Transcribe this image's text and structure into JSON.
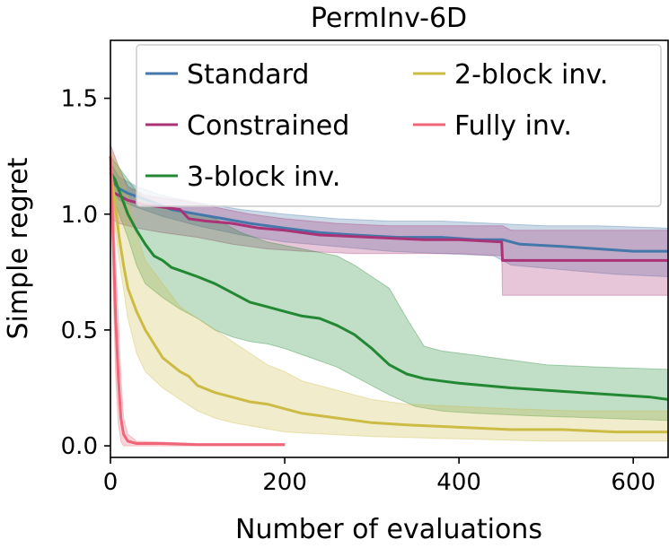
{
  "chart_data": {
    "type": "line",
    "title": "PermInv-6D",
    "xlabel": "Number of evaluations",
    "ylabel": "Simple regret",
    "xlim": [
      0,
      640
    ],
    "ylim": [
      -0.05,
      1.75
    ],
    "xticks": [
      0,
      200,
      400,
      600
    ],
    "yticks": [
      0.0,
      0.5,
      1.0,
      1.5
    ],
    "xtick_labels": [
      "0",
      "200",
      "400",
      "600"
    ],
    "ytick_labels": [
      "0.0",
      "0.5",
      "1.0",
      "1.5"
    ],
    "grid": false,
    "legend_position": "top-right",
    "series": [
      {
        "name": "Standard",
        "color": "#4477aa",
        "mean": [
          [
            0,
            1.18
          ],
          [
            5,
            1.13
          ],
          [
            10,
            1.11
          ],
          [
            20,
            1.09
          ],
          [
            35,
            1.07
          ],
          [
            50,
            1.05
          ],
          [
            70,
            1.02
          ],
          [
            100,
            1.0
          ],
          [
            130,
            0.98
          ],
          [
            160,
            0.96
          ],
          [
            200,
            0.94
          ],
          [
            240,
            0.92
          ],
          [
            280,
            0.91
          ],
          [
            330,
            0.9
          ],
          [
            380,
            0.9
          ],
          [
            420,
            0.89
          ],
          [
            450,
            0.89
          ],
          [
            470,
            0.87
          ],
          [
            520,
            0.86
          ],
          [
            560,
            0.85
          ],
          [
            600,
            0.84
          ],
          [
            640,
            0.84
          ]
        ],
        "upper": [
          [
            0,
            1.22
          ],
          [
            10,
            1.16
          ],
          [
            30,
            1.12
          ],
          [
            60,
            1.08
          ],
          [
            100,
            1.05
          ],
          [
            150,
            1.02
          ],
          [
            200,
            1.0
          ],
          [
            260,
            0.98
          ],
          [
            320,
            0.97
          ],
          [
            380,
            0.97
          ],
          [
            440,
            0.96
          ],
          [
            500,
            0.95
          ],
          [
            560,
            0.95
          ],
          [
            640,
            0.94
          ]
        ],
        "lower": [
          [
            0,
            1.12
          ],
          [
            10,
            1.06
          ],
          [
            30,
            1.03
          ],
          [
            60,
            0.99
          ],
          [
            100,
            0.95
          ],
          [
            150,
            0.91
          ],
          [
            200,
            0.88
          ],
          [
            260,
            0.86
          ],
          [
            320,
            0.84
          ],
          [
            380,
            0.83
          ],
          [
            440,
            0.82
          ],
          [
            460,
            0.78
          ],
          [
            520,
            0.76
          ],
          [
            580,
            0.74
          ],
          [
            640,
            0.73
          ]
        ]
      },
      {
        "name": "Constrained",
        "color": "#aa3377",
        "mean": [
          [
            0,
            1.1
          ],
          [
            10,
            1.08
          ],
          [
            20,
            1.06
          ],
          [
            40,
            1.04
          ],
          [
            60,
            1.03
          ],
          [
            80,
            1.02
          ],
          [
            90,
            0.98
          ],
          [
            110,
            0.97
          ],
          [
            140,
            0.96
          ],
          [
            170,
            0.94
          ],
          [
            200,
            0.93
          ],
          [
            240,
            0.91
          ],
          [
            300,
            0.9
          ],
          [
            360,
            0.89
          ],
          [
            400,
            0.89
          ],
          [
            449,
            0.88
          ],
          [
            450,
            0.8
          ],
          [
            640,
            0.8
          ]
        ],
        "upper": [
          [
            0,
            1.3
          ],
          [
            10,
            1.2
          ],
          [
            20,
            1.12
          ],
          [
            40,
            1.08
          ],
          [
            80,
            1.06
          ],
          [
            120,
            1.03
          ],
          [
            160,
            1.0
          ],
          [
            200,
            0.98
          ],
          [
            260,
            0.96
          ],
          [
            320,
            0.95
          ],
          [
            400,
            0.95
          ],
          [
            450,
            0.95
          ],
          [
            460,
            0.93
          ],
          [
            640,
            0.93
          ]
        ],
        "lower": [
          [
            0,
            0.98
          ],
          [
            10,
            0.96
          ],
          [
            30,
            0.94
          ],
          [
            60,
            0.92
          ],
          [
            100,
            0.9
          ],
          [
            140,
            0.87
          ],
          [
            180,
            0.85
          ],
          [
            220,
            0.84
          ],
          [
            280,
            0.83
          ],
          [
            340,
            0.83
          ],
          [
            400,
            0.83
          ],
          [
            449,
            0.82
          ],
          [
            450,
            0.65
          ],
          [
            640,
            0.65
          ]
        ]
      },
      {
        "name": "3-block inv.",
        "color": "#228833",
        "mean": [
          [
            0,
            1.18
          ],
          [
            5,
            1.15
          ],
          [
            10,
            1.1
          ],
          [
            15,
            1.05
          ],
          [
            20,
            1.0
          ],
          [
            30,
            0.93
          ],
          [
            40,
            0.87
          ],
          [
            50,
            0.82
          ],
          [
            60,
            0.8
          ],
          [
            70,
            0.77
          ],
          [
            85,
            0.75
          ],
          [
            100,
            0.73
          ],
          [
            120,
            0.7
          ],
          [
            140,
            0.66
          ],
          [
            160,
            0.62
          ],
          [
            180,
            0.6
          ],
          [
            200,
            0.58
          ],
          [
            220,
            0.56
          ],
          [
            240,
            0.55
          ],
          [
            260,
            0.52
          ],
          [
            280,
            0.48
          ],
          [
            300,
            0.42
          ],
          [
            320,
            0.35
          ],
          [
            340,
            0.31
          ],
          [
            360,
            0.29
          ],
          [
            380,
            0.28
          ],
          [
            400,
            0.27
          ],
          [
            430,
            0.26
          ],
          [
            460,
            0.25
          ],
          [
            500,
            0.24
          ],
          [
            540,
            0.23
          ],
          [
            580,
            0.22
          ],
          [
            620,
            0.21
          ],
          [
            640,
            0.2
          ]
        ],
        "upper": [
          [
            0,
            1.25
          ],
          [
            10,
            1.2
          ],
          [
            20,
            1.15
          ],
          [
            30,
            1.1
          ],
          [
            40,
            1.06
          ],
          [
            60,
            1.03
          ],
          [
            80,
            1.01
          ],
          [
            100,
            1.0
          ],
          [
            120,
            0.98
          ],
          [
            150,
            0.92
          ],
          [
            180,
            0.88
          ],
          [
            220,
            0.85
          ],
          [
            260,
            0.82
          ],
          [
            280,
            0.78
          ],
          [
            300,
            0.73
          ],
          [
            320,
            0.68
          ],
          [
            340,
            0.55
          ],
          [
            360,
            0.43
          ],
          [
            380,
            0.41
          ],
          [
            420,
            0.39
          ],
          [
            460,
            0.37
          ],
          [
            500,
            0.35
          ],
          [
            560,
            0.34
          ],
          [
            640,
            0.33
          ]
        ],
        "lower": [
          [
            0,
            1.1
          ],
          [
            10,
            1.0
          ],
          [
            20,
            0.9
          ],
          [
            30,
            0.78
          ],
          [
            40,
            0.7
          ],
          [
            60,
            0.64
          ],
          [
            80,
            0.59
          ],
          [
            100,
            0.55
          ],
          [
            120,
            0.5
          ],
          [
            140,
            0.47
          ],
          [
            160,
            0.45
          ],
          [
            180,
            0.44
          ],
          [
            200,
            0.42
          ],
          [
            230,
            0.38
          ],
          [
            260,
            0.34
          ],
          [
            290,
            0.28
          ],
          [
            320,
            0.22
          ],
          [
            350,
            0.17
          ],
          [
            380,
            0.15
          ],
          [
            420,
            0.14
          ],
          [
            480,
            0.13
          ],
          [
            560,
            0.12
          ],
          [
            640,
            0.11
          ]
        ]
      },
      {
        "name": "2-block inv.",
        "color": "#ccbb44",
        "mean": [
          [
            0,
            1.2
          ],
          [
            5,
            1.05
          ],
          [
            10,
            0.9
          ],
          [
            15,
            0.78
          ],
          [
            20,
            0.68
          ],
          [
            30,
            0.58
          ],
          [
            40,
            0.5
          ],
          [
            50,
            0.44
          ],
          [
            60,
            0.38
          ],
          [
            70,
            0.35
          ],
          [
            80,
            0.32
          ],
          [
            90,
            0.3
          ],
          [
            100,
            0.26
          ],
          [
            120,
            0.23
          ],
          [
            140,
            0.21
          ],
          [
            160,
            0.19
          ],
          [
            180,
            0.18
          ],
          [
            200,
            0.16
          ],
          [
            220,
            0.14
          ],
          [
            240,
            0.13
          ],
          [
            260,
            0.12
          ],
          [
            280,
            0.11
          ],
          [
            300,
            0.1
          ],
          [
            340,
            0.09
          ],
          [
            400,
            0.08
          ],
          [
            460,
            0.07
          ],
          [
            520,
            0.07
          ],
          [
            580,
            0.06
          ],
          [
            640,
            0.06
          ]
        ],
        "upper": [
          [
            0,
            1.28
          ],
          [
            10,
            1.2
          ],
          [
            20,
            1.08
          ],
          [
            30,
            0.92
          ],
          [
            40,
            0.8
          ],
          [
            60,
            0.7
          ],
          [
            80,
            0.6
          ],
          [
            100,
            0.55
          ],
          [
            120,
            0.5
          ],
          [
            140,
            0.45
          ],
          [
            160,
            0.4
          ],
          [
            180,
            0.35
          ],
          [
            200,
            0.32
          ],
          [
            220,
            0.28
          ],
          [
            240,
            0.26
          ],
          [
            270,
            0.23
          ],
          [
            300,
            0.2
          ],
          [
            340,
            0.18
          ],
          [
            400,
            0.17
          ],
          [
            460,
            0.16
          ],
          [
            540,
            0.15
          ],
          [
            640,
            0.15
          ]
        ],
        "lower": [
          [
            0,
            1.1
          ],
          [
            10,
            0.8
          ],
          [
            20,
            0.55
          ],
          [
            30,
            0.4
          ],
          [
            40,
            0.32
          ],
          [
            60,
            0.25
          ],
          [
            80,
            0.2
          ],
          [
            100,
            0.15
          ],
          [
            120,
            0.12
          ],
          [
            140,
            0.1
          ],
          [
            170,
            0.08
          ],
          [
            200,
            0.06
          ],
          [
            250,
            0.05
          ],
          [
            300,
            0.04
          ],
          [
            400,
            0.03
          ],
          [
            500,
            0.02
          ],
          [
            640,
            0.02
          ]
        ]
      },
      {
        "name": "Fully inv.",
        "color": "#ee6677",
        "mean": [
          [
            0,
            1.25
          ],
          [
            3,
            0.9
          ],
          [
            6,
            0.55
          ],
          [
            9,
            0.3
          ],
          [
            12,
            0.12
          ],
          [
            15,
            0.05
          ],
          [
            20,
            0.02
          ],
          [
            30,
            0.01
          ],
          [
            60,
            0.01
          ],
          [
            100,
            0.005
          ],
          [
            150,
            0.005
          ],
          [
            200,
            0.005
          ]
        ],
        "upper": [
          [
            0,
            1.28
          ],
          [
            3,
            1.1
          ],
          [
            6,
            0.8
          ],
          [
            9,
            0.55
          ],
          [
            12,
            0.3
          ],
          [
            15,
            0.12
          ],
          [
            20,
            0.05
          ],
          [
            30,
            0.02
          ],
          [
            100,
            0.01
          ],
          [
            200,
            0.01
          ]
        ],
        "lower": [
          [
            0,
            1.2
          ],
          [
            3,
            0.7
          ],
          [
            6,
            0.3
          ],
          [
            9,
            0.1
          ],
          [
            12,
            0.02
          ],
          [
            15,
            0.0
          ],
          [
            30,
            0.0
          ],
          [
            200,
            0.0
          ]
        ]
      }
    ]
  }
}
